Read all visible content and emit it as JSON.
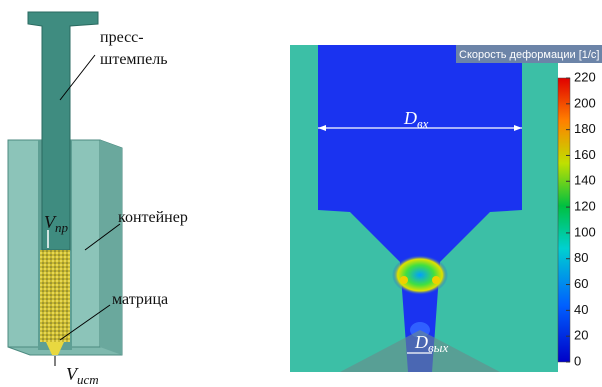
{
  "left": {
    "press_label": [
      "пресс-",
      "штемпель"
    ],
    "container_label": "контейнер",
    "die_label": "матрица",
    "v_press": {
      "symbol": "V",
      "subscript": "пр"
    },
    "v_out": {
      "symbol": "V",
      "subscript": "ист"
    }
  },
  "right": {
    "colorbar": {
      "title": "Скорость деформации  [1/с]",
      "ticks": [
        0,
        20,
        40,
        60,
        80,
        100,
        120,
        140,
        160,
        180,
        200,
        220
      ]
    },
    "d_in": {
      "symbol": "D",
      "subscript": "вх"
    },
    "d_out": {
      "symbol": "D",
      "subscript": "вых"
    }
  }
}
